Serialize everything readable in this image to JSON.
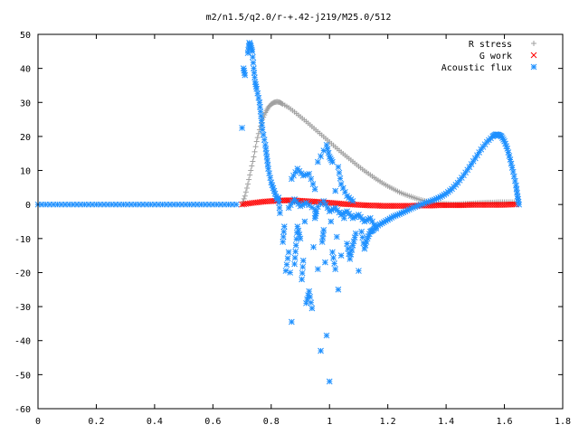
{
  "chart_data": {
    "type": "scatter",
    "title": "m2/n1.5/q2.0/r-+.42-j219/M25.0/512",
    "xlabel": "",
    "ylabel": "",
    "xlim": [
      0,
      1.8
    ],
    "ylim": [
      -60,
      50
    ],
    "x_ticks": [
      "0",
      "0.2",
      "0.4",
      "0.6",
      "0.8",
      "1",
      "1.2",
      "1.4",
      "1.6",
      "1.8"
    ],
    "y_ticks": [
      "50",
      "40",
      "30",
      "20",
      "10",
      "0",
      "-10",
      "-20",
      "-30",
      "-40",
      "-50",
      "-60"
    ],
    "legend_position": "top-right",
    "series": [
      {
        "name": "R stress",
        "marker": "+",
        "color": "#a0a0a0",
        "points": [
          [
            0.7,
            0.0
          ],
          [
            0.71,
            2.5
          ],
          [
            0.72,
            6.0
          ],
          [
            0.73,
            10.0
          ],
          [
            0.74,
            14.0
          ],
          [
            0.75,
            18.5
          ],
          [
            0.76,
            22.0
          ],
          [
            0.77,
            25.0
          ],
          [
            0.78,
            27.0
          ],
          [
            0.79,
            28.5
          ],
          [
            0.8,
            29.5
          ],
          [
            0.81,
            30.0
          ],
          [
            0.82,
            30.2
          ],
          [
            0.83,
            30.0
          ],
          [
            0.84,
            29.5
          ],
          [
            0.86,
            28.5
          ],
          [
            0.88,
            27.2
          ],
          [
            0.9,
            25.8
          ],
          [
            0.92,
            24.4
          ],
          [
            0.94,
            22.9
          ],
          [
            0.96,
            21.4
          ],
          [
            0.98,
            19.9
          ],
          [
            1.0,
            18.4
          ],
          [
            1.02,
            16.9
          ],
          [
            1.04,
            15.4
          ],
          [
            1.06,
            14.0
          ],
          [
            1.08,
            12.6
          ],
          [
            1.1,
            11.2
          ],
          [
            1.12,
            9.9
          ],
          [
            1.14,
            8.7
          ],
          [
            1.16,
            7.5
          ],
          [
            1.18,
            6.4
          ],
          [
            1.2,
            5.4
          ],
          [
            1.22,
            4.5
          ],
          [
            1.24,
            3.6
          ],
          [
            1.26,
            2.9
          ],
          [
            1.28,
            2.3
          ],
          [
            1.3,
            1.7
          ],
          [
            1.32,
            1.2
          ],
          [
            1.34,
            0.8
          ],
          [
            1.36,
            0.5
          ],
          [
            1.38,
            0.3
          ],
          [
            1.4,
            0.2
          ],
          [
            1.42,
            0.1
          ],
          [
            1.44,
            0.1
          ],
          [
            1.46,
            0.2
          ],
          [
            1.48,
            0.3
          ],
          [
            1.5,
            0.4
          ],
          [
            1.52,
            0.5
          ],
          [
            1.54,
            0.6
          ],
          [
            1.56,
            0.6
          ],
          [
            1.58,
            0.7
          ],
          [
            1.6,
            0.7
          ],
          [
            1.62,
            0.7
          ],
          [
            1.64,
            0.7
          ]
        ]
      },
      {
        "name": "G work",
        "marker": "x",
        "color": "#ff0000",
        "points": [
          [
            0.7,
            0.0
          ],
          [
            0.72,
            0.3
          ],
          [
            0.74,
            0.5
          ],
          [
            0.76,
            0.7
          ],
          [
            0.78,
            0.9
          ],
          [
            0.8,
            1.0
          ],
          [
            0.82,
            1.1
          ],
          [
            0.84,
            1.2
          ],
          [
            0.86,
            1.2
          ],
          [
            0.88,
            1.2
          ],
          [
            0.9,
            1.1
          ],
          [
            0.92,
            1.0
          ],
          [
            0.94,
            0.9
          ],
          [
            0.96,
            0.8
          ],
          [
            0.98,
            0.6
          ],
          [
            1.0,
            0.5
          ],
          [
            1.02,
            0.4
          ],
          [
            1.04,
            0.2
          ],
          [
            1.06,
            0.1
          ],
          [
            1.08,
            0.0
          ],
          [
            1.1,
            -0.1
          ],
          [
            1.12,
            -0.2
          ],
          [
            1.14,
            -0.3
          ],
          [
            1.16,
            -0.3
          ],
          [
            1.18,
            -0.4
          ],
          [
            1.2,
            -0.4
          ],
          [
            1.22,
            -0.4
          ],
          [
            1.24,
            -0.4
          ],
          [
            1.26,
            -0.4
          ],
          [
            1.28,
            -0.4
          ],
          [
            1.3,
            -0.3
          ],
          [
            1.32,
            -0.3
          ],
          [
            1.34,
            -0.3
          ],
          [
            1.36,
            -0.3
          ],
          [
            1.38,
            -0.2
          ],
          [
            1.4,
            -0.2
          ],
          [
            1.42,
            -0.2
          ],
          [
            1.44,
            -0.2
          ],
          [
            1.46,
            -0.2
          ],
          [
            1.48,
            -0.1
          ],
          [
            1.5,
            -0.1
          ],
          [
            1.52,
            -0.1
          ],
          [
            1.54,
            -0.1
          ],
          [
            1.56,
            -0.1
          ],
          [
            1.58,
            -0.1
          ],
          [
            1.6,
            -0.1
          ],
          [
            1.62,
            0.0
          ],
          [
            1.64,
            0.0
          ]
        ]
      },
      {
        "name": "Acoustic flux",
        "marker": "*",
        "color": "#1e90ff",
        "points": [
          [
            0.0,
            0.0
          ],
          [
            0.04,
            0.0
          ],
          [
            0.08,
            0.0
          ],
          [
            0.12,
            0.0
          ],
          [
            0.16,
            0.0
          ],
          [
            0.2,
            0.0
          ],
          [
            0.24,
            0.0
          ],
          [
            0.28,
            0.0
          ],
          [
            0.32,
            0.0
          ],
          [
            0.36,
            0.0
          ],
          [
            0.4,
            0.0
          ],
          [
            0.44,
            0.0
          ],
          [
            0.48,
            0.0
          ],
          [
            0.52,
            0.0
          ],
          [
            0.56,
            0.0
          ],
          [
            0.6,
            0.0
          ],
          [
            0.64,
            0.0
          ],
          [
            0.68,
            0.0
          ],
          [
            0.7,
            22.5
          ],
          [
            0.705,
            40.0
          ],
          [
            0.71,
            38.0
          ],
          [
            0.72,
            44.5
          ],
          [
            0.725,
            47.5
          ],
          [
            0.73,
            46.5
          ],
          [
            0.735,
            45.0
          ],
          [
            0.74,
            40.0
          ],
          [
            0.745,
            36.0
          ],
          [
            0.75,
            34.0
          ],
          [
            0.76,
            30.0
          ],
          [
            0.765,
            26.0
          ],
          [
            0.77,
            22.0
          ],
          [
            0.78,
            17.5
          ],
          [
            0.785,
            14.0
          ],
          [
            0.79,
            10.5
          ],
          [
            0.8,
            6.5
          ],
          [
            0.81,
            4.0
          ],
          [
            0.82,
            1.5
          ],
          [
            0.825,
            2.0
          ],
          [
            0.83,
            -2.5
          ],
          [
            0.84,
            -11.0
          ],
          [
            0.845,
            -6.5
          ],
          [
            0.85,
            -19.5
          ],
          [
            0.86,
            -14.0
          ],
          [
            0.865,
            -20.0
          ],
          [
            0.87,
            -34.5
          ],
          [
            0.88,
            -17.5
          ],
          [
            0.885,
            -12.0
          ],
          [
            0.89,
            -6.5
          ],
          [
            0.9,
            -10.0
          ],
          [
            0.905,
            -22.0
          ],
          [
            0.91,
            -16.5
          ],
          [
            0.915,
            -5.0
          ],
          [
            0.92,
            -29.0
          ],
          [
            0.93,
            -25.5
          ],
          [
            0.94,
            -30.5
          ],
          [
            0.945,
            -12.5
          ],
          [
            0.95,
            -4.0
          ],
          [
            0.955,
            -2.0
          ],
          [
            0.96,
            -19.0
          ],
          [
            0.97,
            -43.0
          ],
          [
            0.975,
            -11.0
          ],
          [
            0.98,
            -7.5
          ],
          [
            0.985,
            -17.0
          ],
          [
            0.99,
            -38.5
          ],
          [
            1.0,
            -52.0
          ],
          [
            1.005,
            -5.0
          ],
          [
            1.01,
            -14.0
          ],
          [
            1.02,
            -19.0
          ],
          [
            1.025,
            -9.5
          ],
          [
            1.03,
            -25.0
          ],
          [
            1.04,
            -15.0
          ],
          [
            1.05,
            -4.0
          ],
          [
            1.06,
            -11.5
          ],
          [
            1.07,
            -16.0
          ],
          [
            1.08,
            -12.0
          ],
          [
            1.09,
            -8.5
          ],
          [
            1.1,
            -19.5
          ],
          [
            1.11,
            -8.0
          ],
          [
            1.12,
            -13.0
          ],
          [
            1.13,
            -10.0
          ],
          [
            1.14,
            -8.0
          ],
          [
            1.15,
            -7.5
          ],
          [
            1.16,
            -6.5
          ],
          [
            1.18,
            -5.5
          ],
          [
            1.2,
            -4.5
          ],
          [
            1.22,
            -3.5
          ],
          [
            1.24,
            -2.8
          ],
          [
            1.26,
            -2.0
          ],
          [
            1.28,
            -1.2
          ],
          [
            1.3,
            -0.5
          ],
          [
            1.32,
            0.2
          ],
          [
            1.34,
            0.8
          ],
          [
            1.36,
            1.4
          ],
          [
            1.38,
            2.2
          ],
          [
            1.4,
            3.2
          ],
          [
            1.42,
            4.6
          ],
          [
            1.44,
            6.4
          ],
          [
            1.46,
            8.6
          ],
          [
            1.48,
            11.0
          ],
          [
            1.5,
            13.6
          ],
          [
            1.52,
            16.2
          ],
          [
            1.54,
            18.4
          ],
          [
            1.56,
            20.0
          ],
          [
            1.57,
            20.6
          ],
          [
            1.58,
            20.5
          ],
          [
            1.59,
            20.0
          ],
          [
            1.6,
            18.6
          ],
          [
            1.61,
            16.4
          ],
          [
            1.62,
            13.2
          ],
          [
            1.63,
            9.6
          ],
          [
            1.64,
            5.6
          ],
          [
            1.645,
            2.4
          ],
          [
            1.65,
            0.0
          ],
          [
            0.86,
            -1.0
          ],
          [
            0.88,
            1.5
          ],
          [
            0.9,
            -0.5
          ],
          [
            0.92,
            0.5
          ],
          [
            0.95,
            -1.5
          ],
          [
            0.98,
            1.0
          ],
          [
            1.0,
            -2.0
          ],
          [
            1.02,
            -1.0
          ],
          [
            1.04,
            -3.0
          ],
          [
            1.06,
            -2.0
          ],
          [
            1.08,
            -4.0
          ],
          [
            1.1,
            -3.0
          ],
          [
            1.12,
            -5.0
          ],
          [
            1.14,
            -4.0
          ],
          [
            1.16,
            -7.0
          ],
          [
            0.87,
            7.5
          ],
          [
            0.89,
            10.5
          ],
          [
            0.91,
            8.5
          ],
          [
            0.93,
            9.0
          ],
          [
            0.95,
            4.5
          ],
          [
            0.96,
            12.5
          ],
          [
            0.99,
            17.5
          ],
          [
            1.0,
            14.0
          ],
          [
            1.01,
            12.5
          ],
          [
            1.02,
            4.0
          ],
          [
            1.03,
            11.0
          ],
          [
            1.04,
            6.0
          ],
          [
            1.06,
            2.5
          ],
          [
            1.08,
            1.0
          ]
        ]
      }
    ]
  }
}
